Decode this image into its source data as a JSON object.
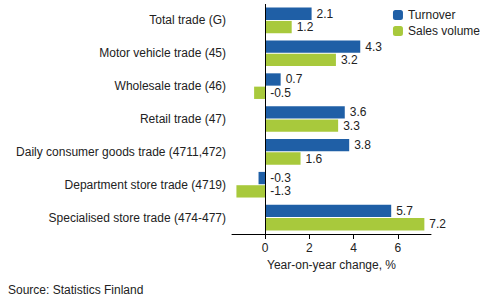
{
  "chart_data": {
    "type": "bar",
    "orientation": "horizontal",
    "categories": [
      "Total trade (G)",
      "Motor vehicle trade (45)",
      "Wholesale trade (46)",
      "Retail trade (47)",
      "Daily consumer goods trade (4711,472)",
      "Department store trade (4719)",
      "Specialised store trade (474-477)"
    ],
    "series": [
      {
        "name": "Turnover",
        "color": "#1f5fa6",
        "values": [
          2.1,
          4.3,
          0.7,
          3.6,
          3.8,
          -0.3,
          5.7
        ]
      },
      {
        "name": "Sales volume",
        "color": "#a8c93c",
        "values": [
          1.2,
          3.2,
          -0.5,
          3.3,
          1.6,
          -1.3,
          7.2
        ]
      }
    ],
    "x_label": "Year-on-year change, %",
    "xlim": [
      -1.5,
      7.5
    ],
    "xticks": [
      0,
      2,
      4,
      6
    ],
    "data_labels": true,
    "grid": false,
    "legend": "upper right",
    "annotations": [
      "Source: Statistics Finland"
    ]
  }
}
